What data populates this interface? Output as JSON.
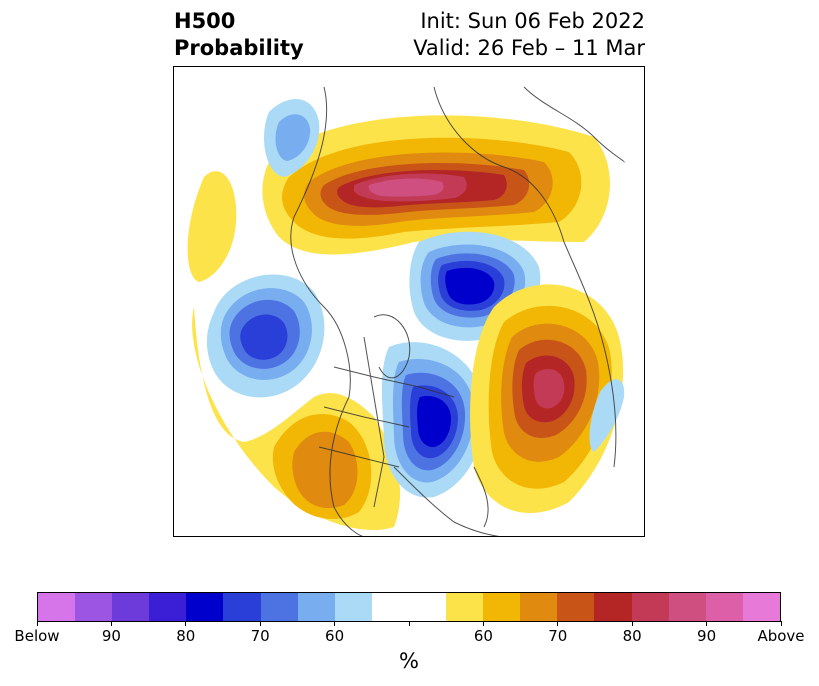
{
  "title": {
    "line1_left": "H500",
    "line2_left": "Probability",
    "line1_right": "Init: Sun 06 Feb 2022",
    "line2_right": "Valid: 26 Feb – 11 Mar"
  },
  "colorbar": {
    "colors": [
      "#d675e9",
      "#9c55e3",
      "#6c3bd9",
      "#3b1fd6",
      "#0000cd",
      "#2a3fd8",
      "#4d73e3",
      "#78adef",
      "#abdaf7",
      "#ffffff",
      "#ffffff",
      "#fde34a",
      "#f2b705",
      "#e08a10",
      "#c85418",
      "#b42626",
      "#c23a55",
      "#cf4f80",
      "#dd5fa8",
      "#e77ad9"
    ],
    "tick_labels": [
      "Below",
      "90",
      "80",
      "70",
      "60",
      "",
      "60",
      "70",
      "80",
      "90",
      "Above"
    ],
    "unit_label": "%"
  }
}
